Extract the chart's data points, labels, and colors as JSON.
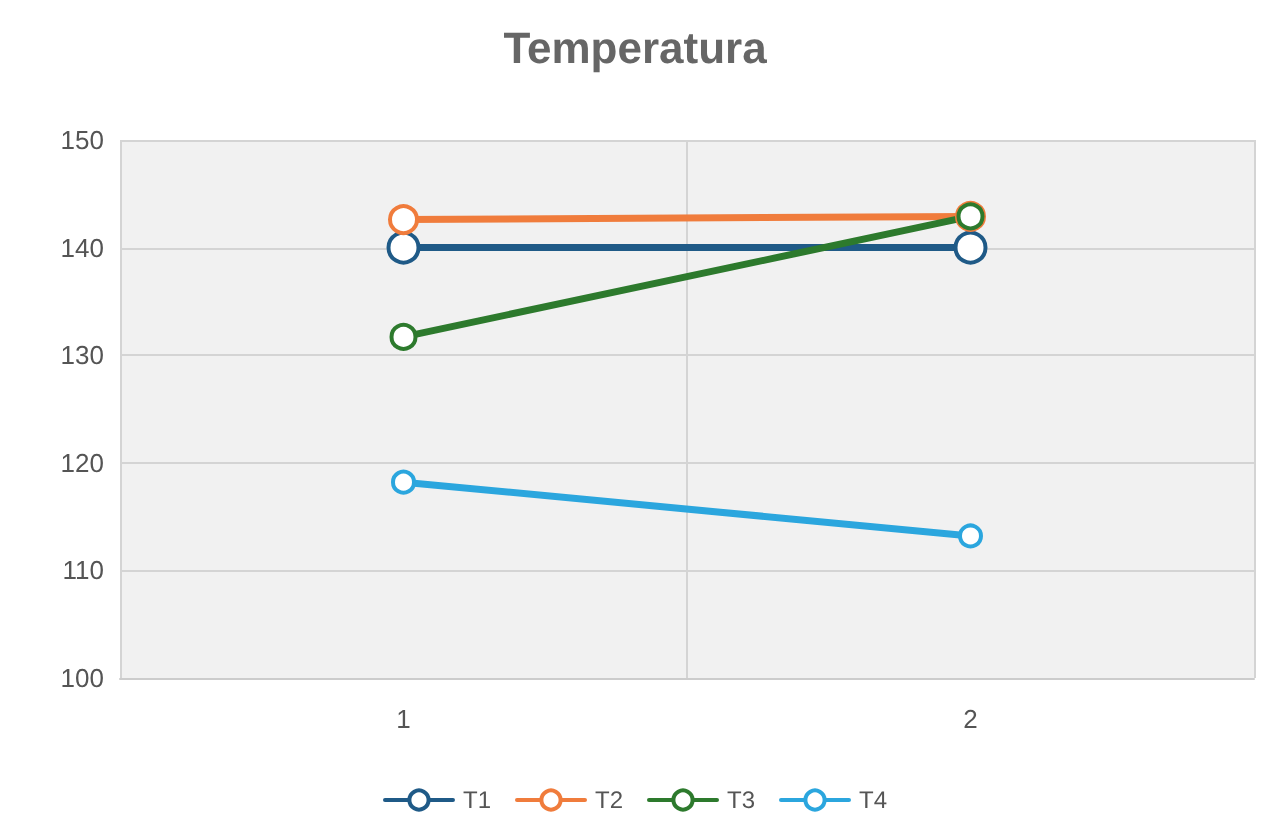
{
  "chart_data": {
    "type": "line",
    "title": "Temperatura",
    "categories": [
      "1",
      "2"
    ],
    "series": [
      {
        "name": "T1",
        "color": "#1f5a87",
        "values": [
          140,
          140
        ]
      },
      {
        "name": "T2",
        "color": "#f07c3c",
        "values": [
          142.6,
          142.9
        ]
      },
      {
        "name": "T3",
        "color": "#2d7a2d",
        "values": [
          131.7,
          142.9
        ]
      },
      {
        "name": "T4",
        "color": "#2ba6de",
        "values": [
          118.2,
          113.2
        ]
      }
    ],
    "ylim": [
      100,
      150
    ],
    "yticks": [
      100,
      110,
      120,
      130,
      140,
      150
    ],
    "grid": true,
    "legend": "bottom",
    "marker": "circle",
    "line_style": "solid"
  }
}
